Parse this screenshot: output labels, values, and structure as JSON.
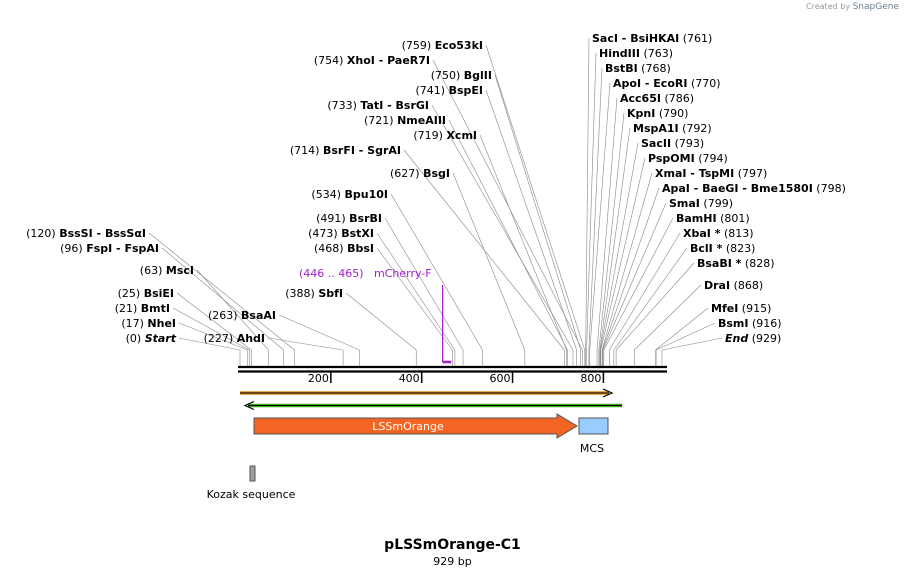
{
  "credit": {
    "prefix": "Created by",
    "brand": "SnapGene"
  },
  "plasmid": {
    "name": "pLSSmOrange-C1",
    "size_label": "929 bp",
    "length": 929
  },
  "colors": {
    "orange": "#f26522",
    "blue": "#99ccff",
    "primer": "#a31fd1",
    "orf_orange": "#d98b1a",
    "orf_green": "#3aa618"
  },
  "ruler": {
    "ticks": [
      {
        "label": "200",
        "bp": 200
      },
      {
        "label": "400",
        "bp": 400
      },
      {
        "label": "600",
        "bp": 600
      },
      {
        "label": "800",
        "bp": 800
      }
    ]
  },
  "sites": [
    {
      "pos": "(0)",
      "name": "Start",
      "bp": 0,
      "italic": true
    },
    {
      "pos": "(17)",
      "name": "NheI",
      "bp": 17
    },
    {
      "pos": "(21)",
      "name": "BmtI",
      "bp": 21
    },
    {
      "pos": "(25)",
      "name": "BsiEI",
      "bp": 25
    },
    {
      "pos": "(63)",
      "name": "MscI",
      "bp": 63
    },
    {
      "pos": "(96)",
      "name": "FspI",
      "name2": "FspAI",
      "bp": 96
    },
    {
      "pos": "(120)",
      "name": "BssSI",
      "name2": "BssSαI",
      "bp": 120
    },
    {
      "pos": "(227)",
      "name": "AhdI",
      "bp": 227
    },
    {
      "pos": "(263)",
      "name": "BsaAI",
      "bp": 263
    },
    {
      "pos": "(388)",
      "name": "SbfI",
      "bp": 388
    },
    {
      "pos": "(468)",
      "name": "BbsI",
      "bp": 468
    },
    {
      "pos": "(473)",
      "name": "BstXI",
      "bp": 473
    },
    {
      "pos": "(491)",
      "name": "BsrBI",
      "bp": 491
    },
    {
      "pos": "(534)",
      "name": "Bpu10I",
      "bp": 534
    },
    {
      "pos": "(627)",
      "name": "BsgI",
      "bp": 627
    },
    {
      "pos": "(714)",
      "name": "BsrFI",
      "name2": "SgrAI",
      "bp": 714
    },
    {
      "pos": "(719)",
      "name": "XcmI",
      "bp": 719
    },
    {
      "pos": "(721)",
      "name": "NmeAIII",
      "bp": 721
    },
    {
      "pos": "(733)",
      "name": "TatI",
      "name2": "BsrGI",
      "bp": 733
    },
    {
      "pos": "(741)",
      "name": "BspEI",
      "bp": 741
    },
    {
      "pos": "(750)",
      "name": "BglII",
      "bp": 750
    },
    {
      "pos": "(754)",
      "name": "XhoI",
      "name2": "PaeR7I",
      "bp": 754
    },
    {
      "pos": "(759)",
      "name": "Eco53kI",
      "bp": 759
    },
    {
      "name": "SacI",
      "name2": "BsiHKAI",
      "pos": "(761)",
      "bp": 761
    },
    {
      "name": "HindIII",
      "pos": "(763)",
      "bp": 763
    },
    {
      "name": "BstBI",
      "pos": "(768)",
      "bp": 768
    },
    {
      "name": "ApoI",
      "name2": "EcoRI",
      "pos": "(770)",
      "bp": 770
    },
    {
      "name": "Acc65I",
      "pos": "(786)",
      "bp": 786
    },
    {
      "name": "KpnI",
      "pos": "(790)",
      "bp": 790
    },
    {
      "name": "MspA1I",
      "pos": "(792)",
      "bp": 792
    },
    {
      "name": "SacII",
      "pos": "(793)",
      "bp": 793
    },
    {
      "name": "PspOMI",
      "pos": "(794)",
      "bp": 794
    },
    {
      "name": "XmaI",
      "name2": "TspMI",
      "pos": "(797)",
      "bp": 797
    },
    {
      "name": "ApaI",
      "name2": "BaeGI",
      "name3": "Bme1580I",
      "pos": "(798)",
      "bp": 798
    },
    {
      "name": "SmaI",
      "pos": "(799)",
      "bp": 799
    },
    {
      "name": "BamHI",
      "pos": "(801)",
      "bp": 801
    },
    {
      "name": "XbaI *",
      "pos": "(813)",
      "bp": 813
    },
    {
      "name": "BclI *",
      "pos": "(823)",
      "bp": 823
    },
    {
      "name": "BsaBI *",
      "pos": "(828)",
      "bp": 828
    },
    {
      "name": "DraI",
      "pos": "(868)",
      "bp": 868
    },
    {
      "name": "MfeI",
      "pos": "(915)",
      "bp": 915
    },
    {
      "name": "BsmI",
      "pos": "(916)",
      "bp": 916
    },
    {
      "name": "End",
      "pos": "(929)",
      "bp": 929,
      "italic": true
    }
  ],
  "primer": {
    "range": "(446 .. 465)",
    "name": "mCherry-F",
    "start": 446,
    "end": 465
  },
  "features": [
    {
      "name": "LSSmOrange",
      "start": 32,
      "end": 740,
      "kind": "arrow"
    },
    {
      "name": "MCS",
      "start": 742,
      "end": 808,
      "kind": "box"
    },
    {
      "name": "Kozak sequence",
      "start": 26,
      "end": 31,
      "kind": "small"
    }
  ]
}
